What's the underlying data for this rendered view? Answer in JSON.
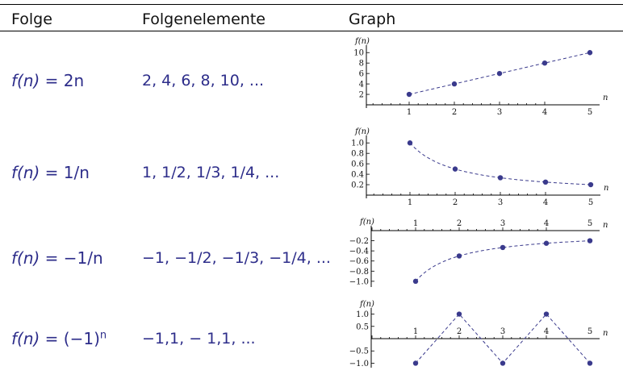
{
  "header": {
    "col1": "Folge",
    "col2": "Folgenelemente",
    "col3": "Graph"
  },
  "rows": [
    {
      "formula_prefix": "f(n) = ",
      "formula_body": "2n",
      "elements": "2, 4, 6, 8, 10, ..."
    },
    {
      "formula_prefix": "f(n) = ",
      "formula_body": "1/n",
      "elements": "1, 1/2, 1/3, 1/4, ..."
    },
    {
      "formula_prefix": "f(n) = ",
      "formula_body": "−1/n",
      "elements": "−1, −1/2, −1/3, −1/4, ..."
    },
    {
      "formula_prefix": "f(n) = ",
      "formula_body": "(−1)",
      "formula_sup": "n",
      "elements": "−1,1, − 1,1, ..."
    }
  ],
  "chart_data": [
    {
      "type": "scatter",
      "ylabel": "f(n)",
      "xlabel": "n",
      "x": [
        1,
        2,
        3,
        4,
        5
      ],
      "y": [
        2,
        4,
        6,
        8,
        10
      ],
      "xticks": [
        1,
        2,
        3,
        4,
        5
      ],
      "yticks": [
        2,
        4,
        6,
        8,
        10
      ],
      "ytick_labels": [
        "2",
        "4",
        "6",
        "8",
        "10"
      ],
      "ylim": [
        0,
        10.5
      ],
      "marker_color": "#3a3a8c",
      "line": "dashed"
    },
    {
      "type": "scatter",
      "ylabel": "f(n)",
      "xlabel": "n",
      "x": [
        1,
        2,
        3,
        4,
        5
      ],
      "y": [
        1.0,
        0.5,
        0.333,
        0.25,
        0.2
      ],
      "xticks": [
        1,
        2,
        3,
        4,
        5
      ],
      "yticks": [
        0.2,
        0.4,
        0.6,
        0.8,
        1.0
      ],
      "ytick_labels": [
        "0.2",
        "0.4",
        "0.6",
        "0.8",
        "1.0"
      ],
      "ylim": [
        0,
        1.05
      ],
      "marker_color": "#3a3a8c",
      "line": "dashed"
    },
    {
      "type": "scatter",
      "ylabel": "f(n)",
      "xlabel": "n",
      "x": [
        1,
        2,
        3,
        4,
        5
      ],
      "y": [
        -1.0,
        -0.5,
        -0.333,
        -0.25,
        -0.2
      ],
      "xticks": [
        1,
        2,
        3,
        4,
        5
      ],
      "yticks": [
        -0.2,
        -0.4,
        -0.6,
        -0.8,
        -1.0
      ],
      "ytick_labels": [
        "−0.2",
        "−0.4",
        "−0.6",
        "−0.8",
        "−1.0"
      ],
      "ylim": [
        -1.05,
        0
      ],
      "marker_color": "#3a3a8c",
      "line": "dashed"
    },
    {
      "type": "scatter",
      "ylabel": "f(n)",
      "xlabel": "n",
      "x": [
        1,
        2,
        3,
        4,
        5
      ],
      "y": [
        -1,
        1,
        -1,
        1,
        -1
      ],
      "xticks": [
        1,
        2,
        3,
        4,
        5
      ],
      "yticks": [
        1.0,
        0.5,
        -0.5,
        -1.0
      ],
      "ytick_labels": [
        "1.0",
        "0.5",
        "−0.5",
        "−1.0"
      ],
      "ylim": [
        -1.05,
        1.05
      ],
      "marker_color": "#3a3a8c",
      "line": "dashed"
    }
  ]
}
